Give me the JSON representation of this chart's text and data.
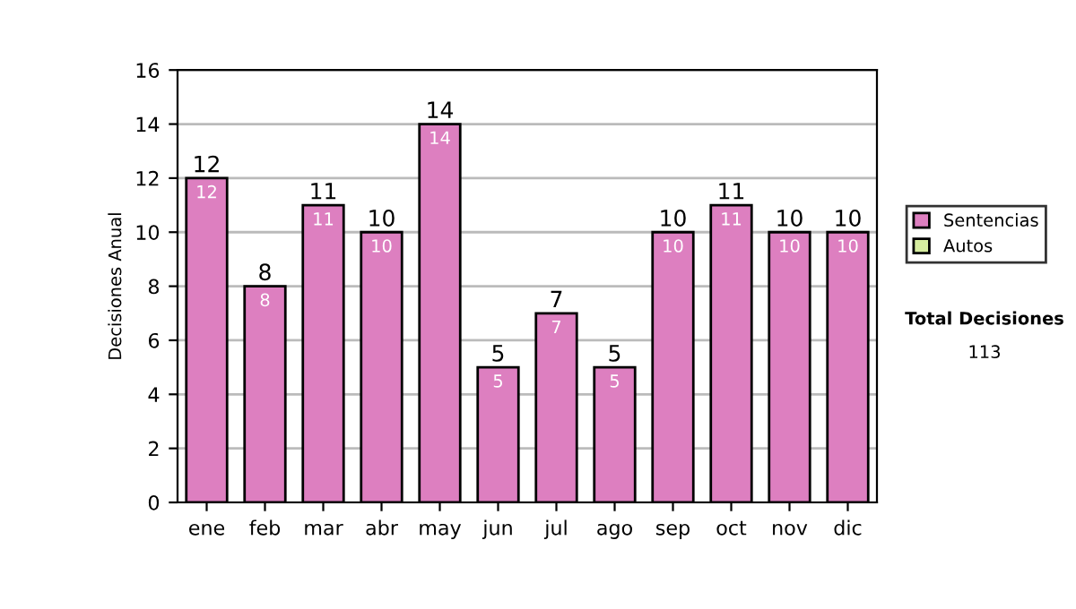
{
  "chart_data": {
    "type": "bar",
    "stacked": true,
    "ylabel": "Decisiones Anual",
    "categories": [
      "ene",
      "feb",
      "mar",
      "abr",
      "may",
      "jun",
      "jul",
      "ago",
      "sep",
      "oct",
      "nov",
      "dic"
    ],
    "series": [
      {
        "name": "Sentencias",
        "color": "#dd7fc0",
        "values": [
          12,
          8,
          11,
          10,
          14,
          5,
          7,
          5,
          10,
          11,
          10,
          10
        ]
      },
      {
        "name": "Autos",
        "color": "#d6eda0",
        "values": [
          null,
          null,
          null,
          null,
          null,
          null,
          null,
          null,
          null,
          null,
          null,
          null
        ]
      }
    ],
    "totals": [
      "12",
      "8",
      "11",
      "10",
      "14",
      "5",
      "7",
      "5",
      "10",
      "11",
      "10",
      "10"
    ],
    "data_labels": true,
    "ylim": [
      0,
      16
    ],
    "yticks": [
      0,
      2,
      4,
      6,
      8,
      10,
      12,
      14,
      16
    ],
    "grid": "y",
    "legend": "right",
    "annotations": [
      "Total Decisiones",
      "113"
    ]
  }
}
